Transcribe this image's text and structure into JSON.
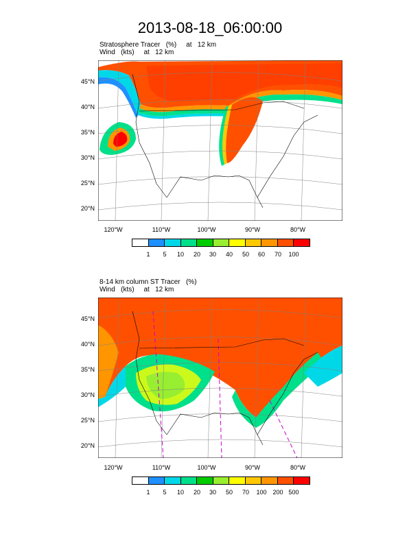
{
  "title": "2013-08-18_06:00:00",
  "panels": [
    {
      "subtitle_line1": "Stratosphere Tracer   (%)     at   12 km",
      "subtitle_line2": "Wind   (kts)     at   12 km",
      "lat_labels": [
        "45°N",
        "40°N",
        "35°N",
        "30°N",
        "25°N",
        "20°N"
      ],
      "lon_labels": [
        "120°W",
        "110°W",
        "100°W",
        "90°W",
        "80°W"
      ],
      "colorbar_labels": [
        "1",
        "5",
        "10",
        "20",
        "30",
        "40",
        "50",
        "60",
        "70",
        "100"
      ]
    },
    {
      "subtitle_line1": "8-14 km column ST Tracer   (%)",
      "subtitle_line2": "Wind   (kts)     at   12 km",
      "lat_labels": [
        "45°N",
        "40°N",
        "35°N",
        "30°N",
        "25°N",
        "20°N"
      ],
      "lon_labels": [
        "120°W",
        "110°W",
        "100°W",
        "90°W",
        "80°W"
      ],
      "colorbar_labels": [
        "1",
        "5",
        "10",
        "20",
        "30",
        "50",
        "70",
        "100",
        "200",
        "500"
      ]
    }
  ],
  "colorbar_colors": [
    "#ffffff",
    "#1e90ff",
    "#00d8e8",
    "#00e08a",
    "#00cc00",
    "#98ee30",
    "#ffff00",
    "#ffc800",
    "#ff9600",
    "#ff5000",
    "#ff0000"
  ]
}
